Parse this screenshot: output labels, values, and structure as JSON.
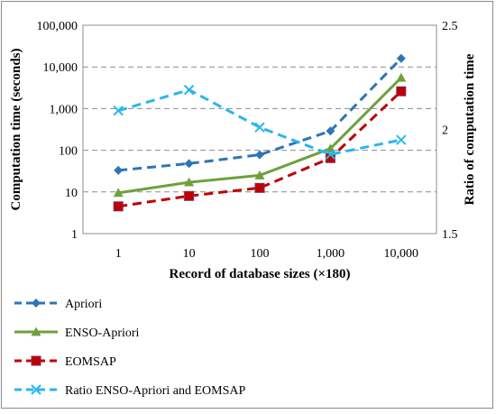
{
  "chart_data": {
    "type": "line",
    "title": "",
    "xlabel": "Record of database sizes (×180)",
    "ylabel": "Computation time (seconds)",
    "y2label": "Ratio of computation time",
    "y_scale": "log",
    "ylim": [
      1,
      100000
    ],
    "y2lim": [
      1.5,
      2.5
    ],
    "grid": "horizontal dashed",
    "legend_position": "bottom",
    "categories": [
      "1",
      "10",
      "100",
      "1,000",
      "10,000"
    ],
    "y_ticks": [
      "1",
      "10",
      "100",
      "1,000",
      "10,000",
      "100,000"
    ],
    "y2_ticks": [
      "1.5",
      "2",
      "2.5"
    ],
    "series": [
      {
        "name": "Apriori",
        "axis": "left",
        "color": "#2e75b6",
        "dash": "dashed",
        "marker": "diamond",
        "values": [
          33,
          48,
          78,
          290,
          16000
        ]
      },
      {
        "name": "ENSO-Apriori",
        "axis": "left",
        "color": "#70a03c",
        "dash": "solid",
        "marker": "triangle",
        "values": [
          9.5,
          17,
          25,
          110,
          5500
        ]
      },
      {
        "name": "EOMSAP",
        "axis": "left",
        "color": "#c00000",
        "dash": "dashed",
        "marker": "square",
        "values": [
          4.5,
          8,
          12.5,
          65,
          2600
        ]
      },
      {
        "name": "Ratio ENSO-Apriori and EOMSAP",
        "axis": "right",
        "color": "#29b6ef",
        "dash": "dashed",
        "marker": "x",
        "values": [
          2.09,
          2.19,
          2.01,
          1.88,
          1.95
        ]
      }
    ]
  }
}
